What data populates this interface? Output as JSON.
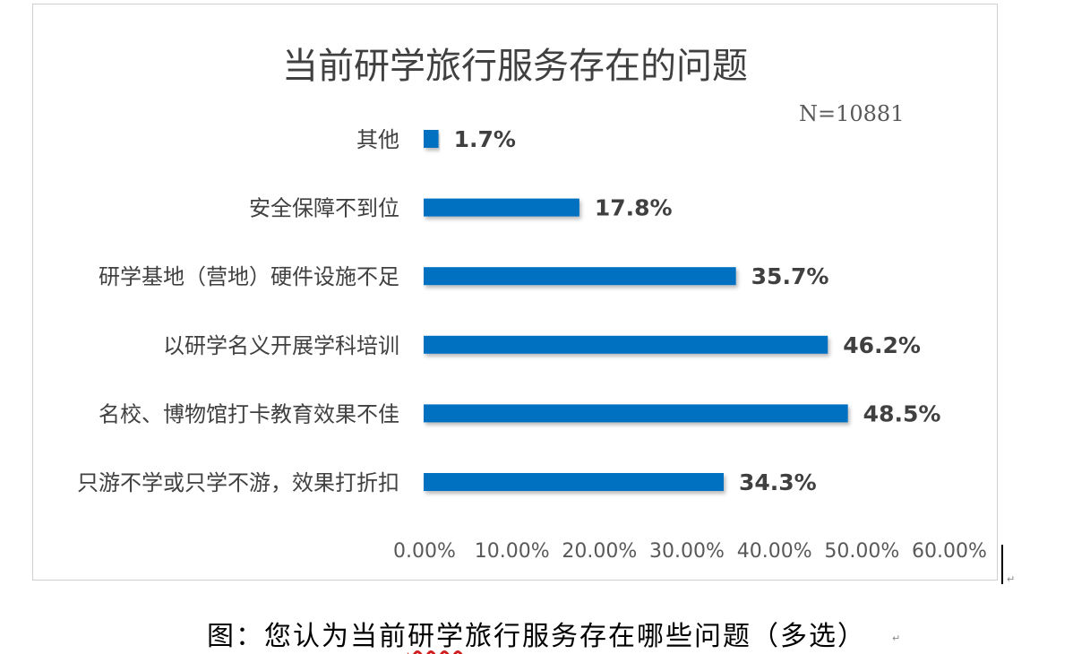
{
  "chart_data": {
    "type": "bar",
    "orientation": "horizontal",
    "title": "当前研学旅行服务存在的问题",
    "annotation": "N=10881",
    "categories": [
      "其他",
      "安全保障不到位",
      "研学基地（营地）硬件设施不足",
      "以研学名义开展学科培训",
      "名校、博物馆打卡教育效果不佳",
      "只游不学或只学不游，效果打折扣"
    ],
    "values": [
      1.7,
      17.8,
      35.7,
      46.2,
      48.5,
      34.3
    ],
    "data_labels": [
      "1.7%",
      "17.8%",
      "35.7%",
      "46.2%",
      "48.5%",
      "34.3%"
    ],
    "xlim": [
      0,
      60
    ],
    "x_ticks": [
      0,
      10,
      20,
      30,
      40,
      50,
      60
    ],
    "x_tick_labels": [
      "0.00%",
      "10.00%",
      "20.00%",
      "30.00%",
      "40.00%",
      "50.00%",
      "60.00%"
    ],
    "bar_color": "#0070C0",
    "grid": false,
    "legend": "none"
  },
  "caption": {
    "prefix": "图：您认为当前",
    "underlined": "研学",
    "suffix": "旅行服务存在哪些问题（多选）"
  },
  "marks": {
    "paragraph": "↵"
  }
}
